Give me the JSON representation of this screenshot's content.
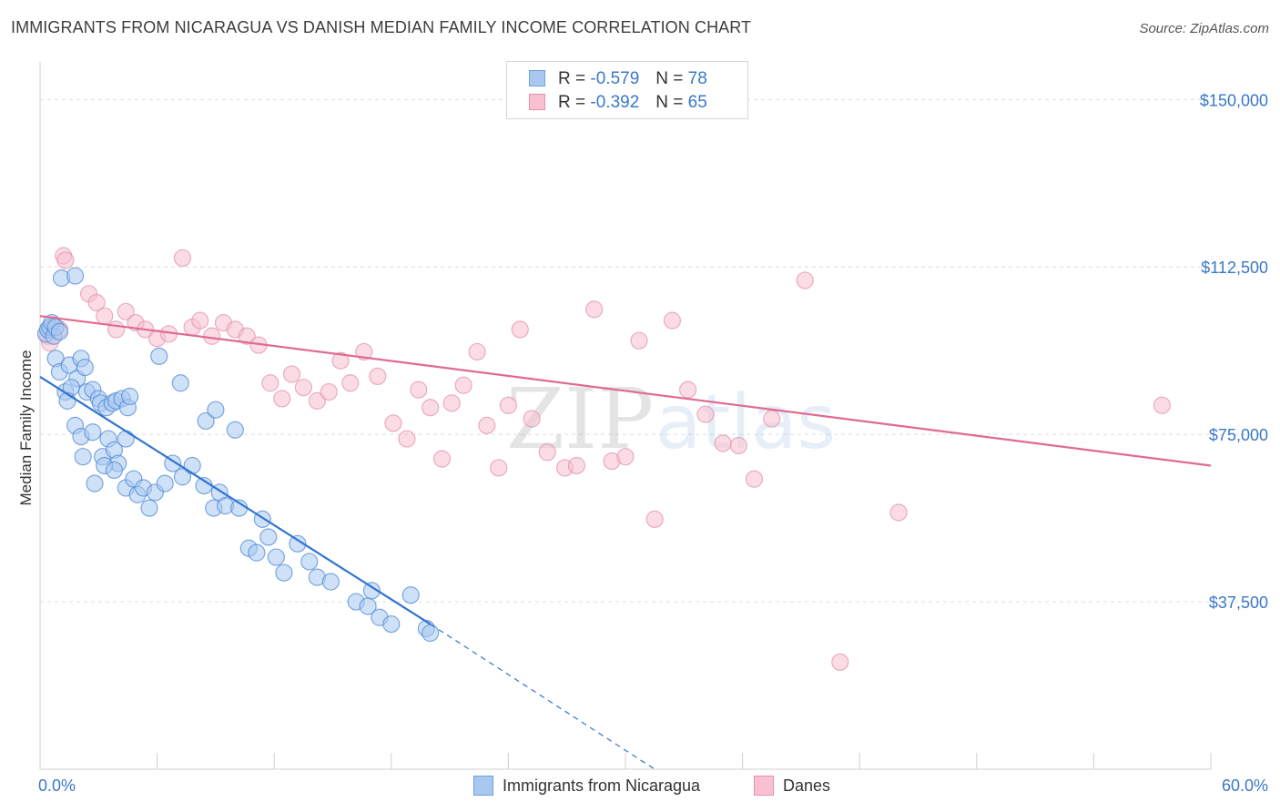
{
  "header": {
    "title": "IMMIGRANTS FROM NICARAGUA VS DANISH MEDIAN FAMILY INCOME CORRELATION CHART",
    "source": "Source: ZipAtlas.com"
  },
  "watermark": {
    "zip": "ZIP",
    "atlas": "atlas"
  },
  "legend": {
    "rows": [
      {
        "r_label": "R =",
        "r_value": "-0.579",
        "n_label": "N =",
        "n_value": "78",
        "color": "#a8c8f0",
        "stroke": "#6ea0dc"
      },
      {
        "r_label": "R =",
        "r_value": "-0.392",
        "n_label": "N =",
        "n_value": "65",
        "color": "#f8c0d0",
        "stroke": "#e890aa"
      }
    ]
  },
  "bottom_legend": {
    "series1": "Immigrants from Nicaragua",
    "series2": "Danes"
  },
  "chart_data": {
    "type": "scatter",
    "title": "IMMIGRANTS FROM NICARAGUA VS DANISH MEDIAN FAMILY INCOME CORRELATION CHART",
    "xlabel": "",
    "ylabel": "Median Family Income",
    "xlim": [
      0,
      60
    ],
    "ylim": [
      0,
      157000
    ],
    "x_tick_labels": [
      "0.0%",
      "60.0%"
    ],
    "y_ticks": [
      37500,
      75000,
      112500,
      150000
    ],
    "y_tick_labels": [
      "$37,500",
      "$75,000",
      "$112,500",
      "$150,000"
    ],
    "series": [
      {
        "name": "Immigrants from Nicaragua",
        "color": "#a8c8f0",
        "stroke": "#4a86d4",
        "line_color": "#2f74d0",
        "trend": {
          "x0": 0,
          "y0": 87900,
          "x1": 20,
          "y1": 32500,
          "dash_to_x": 31.5,
          "dash_to_y": 0
        },
        "points": [
          [
            0.3,
            97500
          ],
          [
            0.4,
            98500
          ],
          [
            0.5,
            99000
          ],
          [
            0.6,
            100000
          ],
          [
            0.7,
            97000
          ],
          [
            0.8,
            99000
          ],
          [
            1.0,
            98000
          ],
          [
            1.1,
            110000
          ],
          [
            1.8,
            110500
          ],
          [
            0.8,
            92000
          ],
          [
            1.0,
            89000
          ],
          [
            1.5,
            90500
          ],
          [
            1.9,
            87500
          ],
          [
            2.1,
            92000
          ],
          [
            2.3,
            90000
          ],
          [
            1.3,
            84500
          ],
          [
            1.6,
            85500
          ],
          [
            2.4,
            84500
          ],
          [
            1.4,
            82500
          ],
          [
            2.7,
            85000
          ],
          [
            3.0,
            83000
          ],
          [
            3.1,
            82000
          ],
          [
            3.4,
            81000
          ],
          [
            3.7,
            82000
          ],
          [
            3.9,
            82500
          ],
          [
            4.2,
            83000
          ],
          [
            4.5,
            81000
          ],
          [
            4.6,
            83500
          ],
          [
            1.8,
            77000
          ],
          [
            2.1,
            74500
          ],
          [
            2.7,
            75500
          ],
          [
            3.2,
            70000
          ],
          [
            3.5,
            74000
          ],
          [
            3.8,
            71500
          ],
          [
            4.0,
            68500
          ],
          [
            4.4,
            74000
          ],
          [
            2.2,
            70000
          ],
          [
            2.8,
            64000
          ],
          [
            3.3,
            68000
          ],
          [
            3.8,
            67000
          ],
          [
            4.4,
            63000
          ],
          [
            4.8,
            65000
          ],
          [
            5.0,
            61500
          ],
          [
            5.3,
            63000
          ],
          [
            5.6,
            58500
          ],
          [
            5.9,
            62000
          ],
          [
            6.4,
            64000
          ],
          [
            6.8,
            68500
          ],
          [
            7.3,
            65500
          ],
          [
            7.8,
            68000
          ],
          [
            8.4,
            63500
          ],
          [
            8.9,
            58500
          ],
          [
            9.2,
            62000
          ],
          [
            9.5,
            59000
          ],
          [
            10.2,
            58500
          ],
          [
            10.7,
            49500
          ],
          [
            11.1,
            48500
          ],
          [
            11.4,
            56000
          ],
          [
            11.7,
            52000
          ],
          [
            12.1,
            47500
          ],
          [
            12.5,
            44000
          ],
          [
            13.2,
            50500
          ],
          [
            13.8,
            46500
          ],
          [
            14.2,
            43000
          ],
          [
            14.9,
            42000
          ],
          [
            16.2,
            37500
          ],
          [
            17.4,
            34000
          ],
          [
            16.8,
            36500
          ],
          [
            18.0,
            32500
          ],
          [
            19.0,
            39000
          ],
          [
            17.0,
            40000
          ],
          [
            19.8,
            31500
          ],
          [
            20.0,
            30500
          ],
          [
            8.5,
            78000
          ],
          [
            9.0,
            80500
          ],
          [
            10.0,
            76000
          ],
          [
            7.2,
            86500
          ],
          [
            6.1,
            92500
          ]
        ]
      },
      {
        "name": "Danes",
        "color": "#f8c0d0",
        "stroke": "#e090a8",
        "line_color": "#e06a90",
        "trend": {
          "x0": 0,
          "y0": 101500,
          "x1": 60,
          "y1": 68000
        },
        "points": [
          [
            0.4,
            97000
          ],
          [
            0.5,
            95500
          ],
          [
            0.7,
            99500
          ],
          [
            1.0,
            98500
          ],
          [
            1.2,
            115000
          ],
          [
            1.3,
            114000
          ],
          [
            2.5,
            106500
          ],
          [
            2.9,
            104500
          ],
          [
            3.3,
            101500
          ],
          [
            3.9,
            98500
          ],
          [
            4.4,
            102500
          ],
          [
            4.9,
            100000
          ],
          [
            5.4,
            98500
          ],
          [
            6.0,
            96500
          ],
          [
            6.6,
            97500
          ],
          [
            7.3,
            114500
          ],
          [
            7.8,
            99000
          ],
          [
            8.2,
            100500
          ],
          [
            8.8,
            97000
          ],
          [
            9.4,
            100000
          ],
          [
            10.0,
            98500
          ],
          [
            10.6,
            97000
          ],
          [
            11.2,
            95000
          ],
          [
            11.8,
            86500
          ],
          [
            12.4,
            83000
          ],
          [
            12.9,
            88500
          ],
          [
            13.5,
            85500
          ],
          [
            14.2,
            82500
          ],
          [
            14.8,
            84500
          ],
          [
            15.4,
            91500
          ],
          [
            15.9,
            86500
          ],
          [
            16.6,
            93500
          ],
          [
            17.3,
            88000
          ],
          [
            18.1,
            77500
          ],
          [
            18.8,
            74000
          ],
          [
            19.4,
            85000
          ],
          [
            20.0,
            81000
          ],
          [
            20.6,
            69500
          ],
          [
            21.1,
            82000
          ],
          [
            21.7,
            86000
          ],
          [
            22.4,
            93500
          ],
          [
            22.9,
            77000
          ],
          [
            23.5,
            67500
          ],
          [
            24.0,
            81500
          ],
          [
            24.6,
            98500
          ],
          [
            25.2,
            78500
          ],
          [
            26.0,
            71000
          ],
          [
            26.9,
            67500
          ],
          [
            27.5,
            68000
          ],
          [
            28.4,
            103000
          ],
          [
            29.3,
            69000
          ],
          [
            30.0,
            70000
          ],
          [
            30.7,
            96000
          ],
          [
            31.5,
            56000
          ],
          [
            32.4,
            100500
          ],
          [
            33.2,
            85000
          ],
          [
            34.1,
            79500
          ],
          [
            35.0,
            73000
          ],
          [
            35.8,
            72500
          ],
          [
            36.6,
            65000
          ],
          [
            37.5,
            78500
          ],
          [
            39.2,
            109500
          ],
          [
            41.0,
            24000
          ],
          [
            44.0,
            57500
          ],
          [
            57.5,
            81500
          ]
        ]
      }
    ]
  }
}
